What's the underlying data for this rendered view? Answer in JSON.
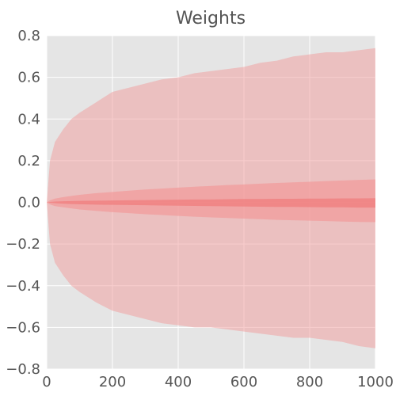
{
  "chart_data": {
    "type": "area",
    "title": "Weights",
    "xlabel": "",
    "ylabel": "",
    "xlim": [
      0,
      1000
    ],
    "ylim": [
      -0.8,
      0.8
    ],
    "xticks": [
      0,
      200,
      400,
      600,
      800,
      1000
    ],
    "xtick_labels": [
      "0",
      "200",
      "400",
      "600",
      "800",
      "1000"
    ],
    "yticks": [
      -0.8,
      -0.6,
      -0.4,
      -0.2,
      0.0,
      0.2,
      0.4,
      0.6,
      0.8
    ],
    "ytick_labels": [
      "−0.8",
      "−0.6",
      "−0.4",
      "−0.2",
      "0.0",
      "0.2",
      "0.4",
      "0.6",
      "0.8"
    ],
    "grid": true,
    "x": [
      0,
      10,
      25,
      50,
      75,
      100,
      150,
      200,
      250,
      300,
      350,
      400,
      450,
      500,
      550,
      600,
      650,
      700,
      750,
      800,
      850,
      900,
      950,
      1000
    ],
    "bands": [
      {
        "name": "",
        "color": "#f29c9c",
        "opacity": 0.5,
        "upper": [
          0.0,
          0.2,
          0.29,
          0.35,
          0.4,
          0.43,
          0.48,
          0.53,
          0.55,
          0.57,
          0.59,
          0.6,
          0.62,
          0.63,
          0.64,
          0.65,
          0.67,
          0.68,
          0.7,
          0.71,
          0.72,
          0.72,
          0.73,
          0.74
        ],
        "lower": [
          0.0,
          -0.2,
          -0.29,
          -0.35,
          -0.4,
          -0.43,
          -0.48,
          -0.52,
          -0.54,
          -0.56,
          -0.58,
          -0.59,
          -0.6,
          -0.6,
          -0.61,
          -0.62,
          -0.63,
          -0.64,
          -0.65,
          -0.65,
          -0.66,
          -0.67,
          -0.69,
          -0.7
        ]
      },
      {
        "name": "",
        "color": "#f29c9c",
        "opacity": 0.75,
        "upper": [
          0.0,
          0.01,
          0.018,
          0.025,
          0.031,
          0.036,
          0.044,
          0.05,
          0.056,
          0.062,
          0.066,
          0.071,
          0.075,
          0.079,
          0.083,
          0.086,
          0.09,
          0.093,
          0.096,
          0.099,
          0.102,
          0.105,
          0.108,
          0.11
        ],
        "lower": [
          0.0,
          -0.01,
          -0.018,
          -0.024,
          -0.029,
          -0.034,
          -0.041,
          -0.047,
          -0.052,
          -0.057,
          -0.061,
          -0.065,
          -0.069,
          -0.072,
          -0.075,
          -0.078,
          -0.081,
          -0.084,
          -0.086,
          -0.088,
          -0.09,
          -0.092,
          -0.094,
          -0.095
        ]
      },
      {
        "name": "",
        "color": "#f08080",
        "opacity": 0.8,
        "upper": [
          0.0,
          0.002,
          0.004,
          0.005,
          0.006,
          0.007,
          0.008,
          0.009,
          0.01,
          0.011,
          0.012,
          0.013,
          0.014,
          0.014,
          0.015,
          0.016,
          0.016,
          0.017,
          0.017,
          0.018,
          0.018,
          0.019,
          0.019,
          0.02
        ],
        "lower": [
          0.0,
          -0.002,
          -0.004,
          -0.006,
          -0.008,
          -0.009,
          -0.011,
          -0.012,
          -0.013,
          -0.014,
          -0.015,
          -0.016,
          -0.017,
          -0.018,
          -0.019,
          -0.02,
          -0.021,
          -0.022,
          -0.022,
          -0.023,
          -0.024,
          -0.024,
          -0.025,
          -0.025
        ]
      }
    ],
    "colors": {
      "plot_background": "#e5e5e5",
      "grid": "#ffffff",
      "text": "#555555"
    }
  }
}
